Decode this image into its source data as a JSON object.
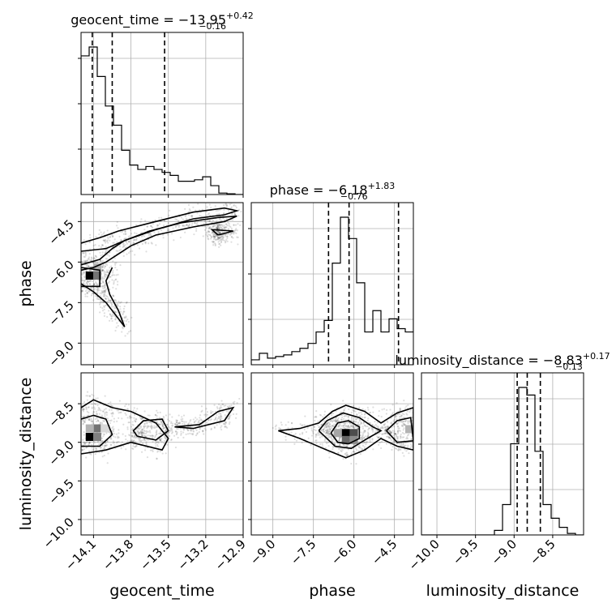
{
  "chart_data": {
    "type": "corner",
    "parameters": [
      {
        "name": "geocent_time",
        "title_prefix": "geocent_time = ",
        "median": "−13.95",
        "plus": "+0.42",
        "minus": "−0.16",
        "range": [
          -14.2,
          -12.9
        ],
        "ticks": [
          -14.1,
          -13.8,
          -13.5,
          -13.2,
          -12.9
        ],
        "tick_labels": [
          "−14.1",
          "−13.8",
          "−13.5",
          "−13.2",
          "−12.9"
        ],
        "quantiles": [
          -14.11,
          -13.95,
          -13.53
        ],
        "hist": {
          "edges": [
            -14.2,
            -14.135,
            -14.07,
            -14.005,
            -13.94,
            -13.875,
            -13.81,
            -13.745,
            -13.68,
            -13.615,
            -13.55,
            -13.485,
            -13.42,
            -13.355,
            -13.29,
            -13.225,
            -13.16,
            -13.095,
            -13.03,
            -12.965,
            -12.9
          ],
          "values": [
            0.94,
            1.0,
            0.8,
            0.6,
            0.47,
            0.3,
            0.2,
            0.17,
            0.19,
            0.17,
            0.15,
            0.13,
            0.09,
            0.09,
            0.1,
            0.12,
            0.06,
            0.01,
            0.005,
            0.0
          ]
        }
      },
      {
        "name": "phase",
        "title_prefix": "phase = ",
        "median": "−6.18",
        "plus": "+1.83",
        "minus": "−0.76",
        "range": [
          -9.8,
          -3.8
        ],
        "ticks": [
          -9.0,
          -7.5,
          -6.0,
          -4.5
        ],
        "tick_labels": [
          "−9.0",
          "−7.5",
          "−6.0",
          "−4.5"
        ],
        "quantiles": [
          -6.94,
          -6.18,
          -4.35
        ],
        "hist": {
          "edges": [
            -9.8,
            -9.5,
            -9.2,
            -8.9,
            -8.6,
            -8.3,
            -8.0,
            -7.7,
            -7.4,
            -7.1,
            -6.8,
            -6.5,
            -6.2,
            -5.9,
            -5.6,
            -5.3,
            -5.0,
            -4.7,
            -4.4,
            -4.1,
            -3.8
          ],
          "values": [
            0.03,
            0.07,
            0.04,
            0.05,
            0.06,
            0.08,
            0.1,
            0.13,
            0.2,
            0.27,
            0.62,
            0.9,
            0.77,
            0.5,
            0.2,
            0.33,
            0.2,
            0.28,
            0.22,
            0.2,
            0.52
          ]
        }
      },
      {
        "name": "luminosity_distance",
        "title_prefix": "luminosity_distance = ",
        "median": "−8.83",
        "plus": "+0.17",
        "minus": "−0.13",
        "range": [
          -10.2,
          -8.1
        ],
        "ticks": [
          -10.0,
          -9.5,
          -9.0,
          -8.5
        ],
        "tick_labels": [
          "−10.0",
          "−9.5",
          "−9.0",
          "−8.5"
        ],
        "quantiles": [
          -8.96,
          -8.83,
          -8.66
        ],
        "hist": {
          "edges": [
            -10.2,
            -10.095,
            -9.99,
            -9.885,
            -9.78,
            -9.675,
            -9.57,
            -9.465,
            -9.36,
            -9.255,
            -9.15,
            -9.045,
            -8.94,
            -8.835,
            -8.73,
            -8.625,
            -8.52,
            -8.415,
            -8.31,
            -8.205,
            -8.1
          ],
          "values": [
            0,
            0,
            0,
            0,
            0,
            0,
            0,
            0,
            0,
            0.03,
            0.2,
            0.6,
            0.97,
            0.92,
            0.55,
            0.2,
            0.11,
            0.05,
            0.01,
            0
          ]
        }
      }
    ],
    "density_cells": [
      {
        "pair": [
          0,
          1
        ],
        "x": -14.13,
        "y": -6.5,
        "level": 1.0
      },
      {
        "pair": [
          0,
          1
        ],
        "x": -14.07,
        "y": -6.5,
        "level": 0.55
      },
      {
        "pair": [
          0,
          1
        ],
        "x": -14.07,
        "y": -6.2,
        "level": 0.3
      },
      {
        "pair": [
          0,
          2
        ],
        "x": -14.13,
        "y": -8.93,
        "level": 1.0
      },
      {
        "pair": [
          0,
          2
        ],
        "x": -14.07,
        "y": -8.93,
        "level": 0.5
      },
      {
        "pair": [
          0,
          2
        ],
        "x": -14.07,
        "y": -8.82,
        "level": 0.55
      },
      {
        "pair": [
          0,
          2
        ],
        "x": -14.13,
        "y": -8.82,
        "level": 0.3
      },
      {
        "pair": [
          0,
          2
        ],
        "x": -14.01,
        "y": -8.82,
        "level": 0.15
      },
      {
        "pair": [
          1,
          2
        ],
        "x": -6.3,
        "y": -8.88,
        "level": 1.0
      },
      {
        "pair": [
          1,
          2
        ],
        "x": -6.0,
        "y": -8.88,
        "level": 0.7
      },
      {
        "pair": [
          1,
          2
        ],
        "x": -6.3,
        "y": -8.97,
        "level": 0.6
      },
      {
        "pair": [
          1,
          2
        ],
        "x": -6.0,
        "y": -8.97,
        "level": 0.45
      },
      {
        "pair": [
          1,
          2
        ],
        "x": -6.6,
        "y": -8.88,
        "level": 0.35
      },
      {
        "pair": [
          1,
          2
        ],
        "x": -3.95,
        "y": -8.83,
        "level": 0.3
      }
    ],
    "contours": [
      {
        "pair": [
          0,
          1
        ],
        "points": [
          [
            -14.2,
            -6.1
          ],
          [
            -14.05,
            -5.9
          ],
          [
            -13.95,
            -5.5
          ],
          [
            -13.85,
            -5.2
          ],
          [
            -13.6,
            -4.8
          ],
          [
            -13.3,
            -4.4
          ],
          [
            -13.05,
            -4.25
          ],
          [
            -12.95,
            -4.1
          ],
          [
            -13.05,
            -4.0
          ],
          [
            -13.3,
            -4.15
          ],
          [
            -13.6,
            -4.5
          ],
          [
            -13.9,
            -4.85
          ],
          [
            -14.05,
            -5.1
          ],
          [
            -14.2,
            -5.3
          ]
        ]
      },
      {
        "pair": [
          0,
          1
        ],
        "points": [
          [
            -14.2,
            -6.3
          ],
          [
            -14.1,
            -6.2
          ],
          [
            -14.0,
            -6.0
          ],
          [
            -13.9,
            -5.7
          ],
          [
            -13.8,
            -5.4
          ],
          [
            -13.6,
            -5.0
          ],
          [
            -13.3,
            -4.7
          ],
          [
            -13.05,
            -4.5
          ],
          [
            -12.95,
            -4.3
          ],
          [
            -13.1,
            -4.35
          ],
          [
            -13.4,
            -4.55
          ],
          [
            -13.65,
            -4.85
          ],
          [
            -13.85,
            -5.2
          ],
          [
            -14.0,
            -5.5
          ],
          [
            -14.2,
            -5.6
          ]
        ]
      },
      {
        "pair": [
          0,
          1
        ],
        "points": [
          [
            -14.2,
            -6.9
          ],
          [
            -14.05,
            -6.9
          ],
          [
            -14.05,
            -6.3
          ],
          [
            -14.2,
            -6.2
          ]
        ]
      },
      {
        "pair": [
          0,
          1
        ],
        "points": [
          [
            -14.2,
            -6.8
          ],
          [
            -14.1,
            -7.1
          ],
          [
            -14.0,
            -7.5
          ],
          [
            -13.9,
            -8.1
          ],
          [
            -13.85,
            -8.4
          ],
          [
            -13.9,
            -7.8
          ],
          [
            -13.97,
            -7.2
          ],
          [
            -14.0,
            -6.7
          ],
          [
            -13.95,
            -6.2
          ]
        ]
      },
      {
        "pair": [
          0,
          1
        ],
        "points": [
          [
            -13.1,
            -5.0
          ],
          [
            -12.98,
            -4.85
          ],
          [
            -13.15,
            -4.8
          ],
          [
            -13.1,
            -5.0
          ]
        ]
      },
      {
        "pair": [
          0,
          2
        ],
        "points": [
          [
            -14.2,
            -9.15
          ],
          [
            -14.0,
            -9.1
          ],
          [
            -13.8,
            -9.0
          ],
          [
            -13.55,
            -9.1
          ],
          [
            -13.5,
            -8.95
          ],
          [
            -13.6,
            -8.75
          ],
          [
            -13.8,
            -8.6
          ],
          [
            -13.95,
            -8.55
          ],
          [
            -14.1,
            -8.45
          ],
          [
            -14.2,
            -8.55
          ]
        ]
      },
      {
        "pair": [
          0,
          2
        ],
        "points": [
          [
            -14.2,
            -9.05
          ],
          [
            -14.05,
            -9.05
          ],
          [
            -13.95,
            -8.9
          ],
          [
            -14.0,
            -8.7
          ],
          [
            -14.1,
            -8.65
          ],
          [
            -14.2,
            -8.7
          ]
        ]
      },
      {
        "pair": [
          0,
          2
        ],
        "points": [
          [
            -13.75,
            -8.92
          ],
          [
            -13.6,
            -8.97
          ],
          [
            -13.5,
            -8.85
          ],
          [
            -13.55,
            -8.7
          ],
          [
            -13.7,
            -8.72
          ],
          [
            -13.78,
            -8.85
          ],
          [
            -13.75,
            -8.92
          ]
        ]
      },
      {
        "pair": [
          0,
          2
        ],
        "points": [
          [
            -13.45,
            -8.8
          ],
          [
            -13.25,
            -8.77
          ],
          [
            -13.1,
            -8.6
          ],
          [
            -12.98,
            -8.55
          ],
          [
            -13.05,
            -8.72
          ],
          [
            -13.3,
            -8.82
          ],
          [
            -13.45,
            -8.8
          ]
        ]
      },
      {
        "pair": [
          1,
          2
        ],
        "points": [
          [
            -8.8,
            -8.85
          ],
          [
            -8.0,
            -8.82
          ],
          [
            -7.3,
            -8.75
          ],
          [
            -6.8,
            -8.6
          ],
          [
            -6.3,
            -8.52
          ],
          [
            -5.6,
            -8.6
          ],
          [
            -5.0,
            -8.75
          ],
          [
            -4.4,
            -8.62
          ],
          [
            -3.8,
            -8.55
          ],
          [
            -3.8,
            -9.1
          ],
          [
            -4.4,
            -9.05
          ],
          [
            -5.0,
            -8.95
          ],
          [
            -5.6,
            -9.1
          ],
          [
            -6.3,
            -9.2
          ],
          [
            -7.0,
            -9.1
          ],
          [
            -8.0,
            -8.95
          ],
          [
            -8.8,
            -8.85
          ]
        ]
      },
      {
        "pair": [
          1,
          2
        ],
        "points": [
          [
            -7.3,
            -8.85
          ],
          [
            -7.0,
            -8.72
          ],
          [
            -6.4,
            -8.62
          ],
          [
            -5.8,
            -8.68
          ],
          [
            -5.3,
            -8.8
          ],
          [
            -5.0,
            -8.85
          ],
          [
            -5.5,
            -8.95
          ],
          [
            -6.1,
            -9.08
          ],
          [
            -6.7,
            -9.05
          ],
          [
            -7.3,
            -8.85
          ]
        ]
      },
      {
        "pair": [
          1,
          2
        ],
        "points": [
          [
            -6.85,
            -8.88
          ],
          [
            -6.6,
            -8.75
          ],
          [
            -6.2,
            -8.72
          ],
          [
            -5.8,
            -8.8
          ],
          [
            -5.8,
            -8.95
          ],
          [
            -6.2,
            -9.02
          ],
          [
            -6.6,
            -9.0
          ],
          [
            -6.85,
            -8.88
          ]
        ]
      },
      {
        "pair": [
          1,
          2
        ],
        "points": [
          [
            -4.8,
            -8.85
          ],
          [
            -4.4,
            -8.72
          ],
          [
            -3.9,
            -8.68
          ],
          [
            -3.8,
            -8.98
          ],
          [
            -4.4,
            -9.0
          ],
          [
            -4.8,
            -8.85
          ]
        ]
      }
    ]
  }
}
